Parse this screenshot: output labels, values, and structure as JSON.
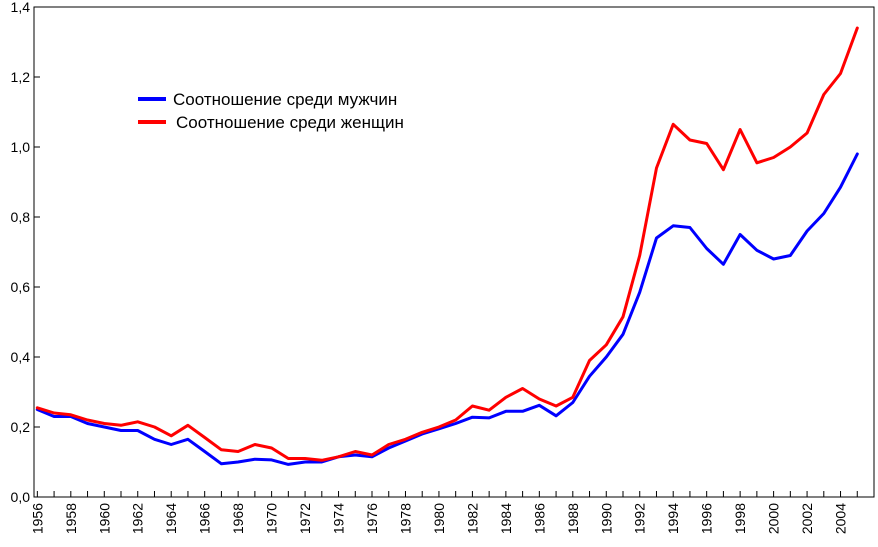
{
  "chart_data": {
    "type": "line",
    "title": "",
    "xlabel": "",
    "ylabel": "",
    "xlim": [
      1955.8,
      2006
    ],
    "ylim": [
      0,
      1.4
    ],
    "x_ticks": [
      "1956",
      "1958",
      "1960",
      "1962",
      "1964",
      "1966",
      "1968",
      "1970",
      "1972",
      "1974",
      "1976",
      "1978",
      "1980",
      "1982",
      "1984",
      "1986",
      "1988",
      "1990",
      "1992",
      "1994",
      "1996",
      "1998",
      "2000",
      "2002",
      "2004"
    ],
    "y_ticks": [
      "0,0",
      "0,2",
      "0,4",
      "0,6",
      "0,8",
      "1,0",
      "1,2",
      "1,4"
    ],
    "grid": false,
    "legend": "top-left",
    "x": [
      1956,
      1957,
      1958,
      1959,
      1960,
      1961,
      1962,
      1963,
      1964,
      1965,
      1966,
      1967,
      1968,
      1969,
      1970,
      1971,
      1972,
      1973,
      1974,
      1975,
      1976,
      1977,
      1978,
      1979,
      1980,
      1981,
      1982,
      1983,
      1984,
      1985,
      1986,
      1987,
      1988,
      1989,
      1990,
      1991,
      1992,
      1993,
      1994,
      1995,
      1996,
      1997,
      1998,
      1999,
      2000,
      2001,
      2002,
      2003,
      2004,
      2005
    ],
    "series": [
      {
        "name": "Соотношение среди мужчин",
        "color": "#0000ff",
        "values": [
          0.25,
          0.23,
          0.23,
          0.21,
          0.2,
          0.19,
          0.19,
          0.165,
          0.15,
          0.165,
          0.13,
          0.095,
          0.1,
          0.108,
          0.106,
          0.093,
          0.1,
          0.1,
          0.115,
          0.12,
          0.115,
          0.14,
          0.16,
          0.18,
          0.195,
          0.21,
          0.228,
          0.226,
          0.245,
          0.245,
          0.262,
          0.232,
          0.27,
          0.345,
          0.4,
          0.465,
          0.585,
          0.74,
          0.775,
          0.77,
          0.71,
          0.665,
          0.75,
          0.705,
          0.68,
          0.69,
          0.76,
          0.81,
          0.885,
          0.98
        ]
      },
      {
        "name": "Соотношение среди женщин",
        "color": "#ff0000",
        "values": [
          0.255,
          0.24,
          0.235,
          0.22,
          0.21,
          0.205,
          0.215,
          0.2,
          0.175,
          0.205,
          0.17,
          0.135,
          0.13,
          0.15,
          0.14,
          0.11,
          0.11,
          0.105,
          0.115,
          0.13,
          0.12,
          0.15,
          0.165,
          0.185,
          0.2,
          0.22,
          0.26,
          0.248,
          0.285,
          0.31,
          0.28,
          0.26,
          0.285,
          0.39,
          0.435,
          0.515,
          0.69,
          0.94,
          1.065,
          1.02,
          1.01,
          0.935,
          1.05,
          0.955,
          0.97,
          1.0,
          1.04,
          1.15,
          1.21,
          1.34
        ]
      }
    ]
  }
}
